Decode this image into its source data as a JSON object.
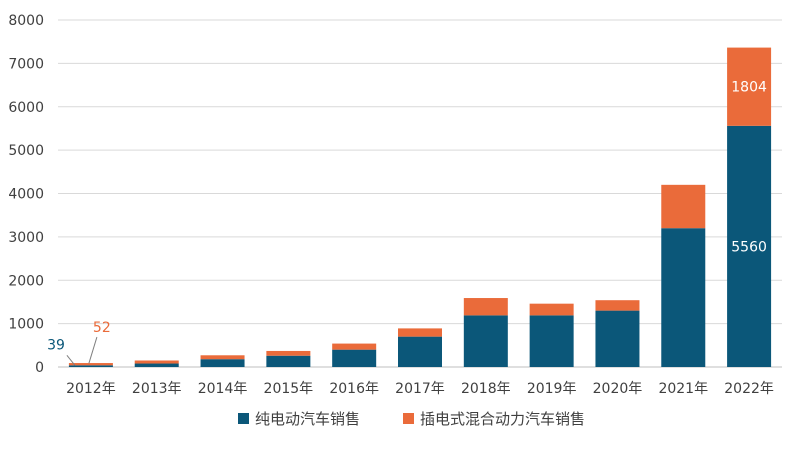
{
  "chart_data": {
    "type": "bar",
    "stacked": true,
    "categories": [
      "2012年",
      "2013年",
      "2014年",
      "2015年",
      "2016年",
      "2017年",
      "2018年",
      "2019年",
      "2020年",
      "2021年",
      "2022年"
    ],
    "series": [
      {
        "name": "纯电动汽车销售",
        "color": "#0b5779",
        "values": [
          39,
          80,
          180,
          260,
          400,
          700,
          1190,
          1190,
          1300,
          3200,
          5560
        ]
      },
      {
        "name": "插电式混合动力汽车销售",
        "color": "#ea6b3a",
        "values": [
          52,
          70,
          90,
          110,
          140,
          190,
          400,
          270,
          240,
          1000,
          1804
        ]
      }
    ],
    "ylim": [
      0,
      8000
    ],
    "yticks": [
      "0",
      "1000",
      "2000",
      "3000",
      "4000",
      "5000",
      "6000",
      "7000",
      "8000"
    ],
    "grid": true,
    "legend_position": "bottom",
    "annotations": [
      {
        "series": 0,
        "category": 0,
        "text": "39",
        "color": "#0b5779"
      },
      {
        "series": 1,
        "category": 0,
        "text": "52",
        "color": "#ea6b3a"
      },
      {
        "series": 1,
        "category": 10,
        "text": "1804",
        "color": "#ffffff"
      },
      {
        "series": 0,
        "category": 10,
        "text": "5560",
        "color": "#ffffff"
      }
    ],
    "colors": {
      "grid": "#d9d9d9",
      "axis": "#bfbfbf",
      "text": "#404040"
    }
  }
}
